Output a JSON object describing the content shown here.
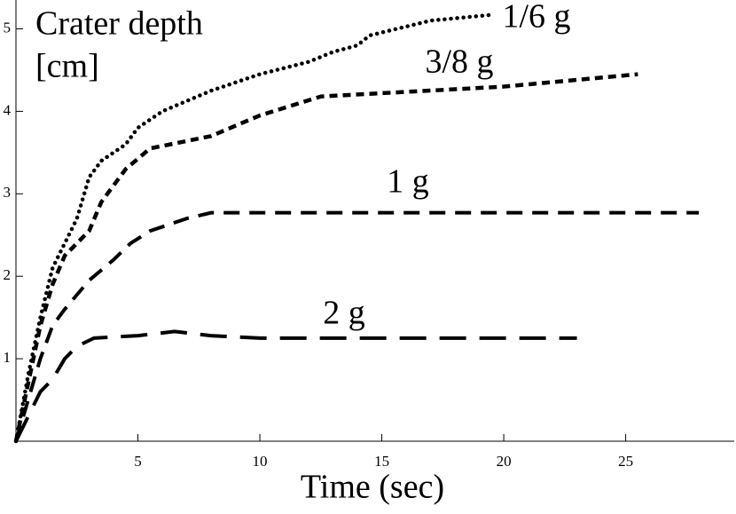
{
  "chart_data": {
    "type": "line",
    "ylabel": [
      "Crater depth",
      "[cm]"
    ],
    "xlabel": "Time (sec)",
    "xlim": [
      0,
      29.45
    ],
    "ylim": [
      0,
      5.35
    ],
    "xticks": [
      5,
      10,
      15,
      20,
      25
    ],
    "yticks": [
      1,
      2,
      3,
      4,
      5
    ],
    "series": [
      {
        "name": "1/6 g",
        "color": "#000000",
        "dash": "dotted",
        "x": [
          0,
          0.5,
          1,
          1.5,
          2,
          2.5,
          3,
          3.5,
          4.5,
          5,
          6,
          8,
          10,
          12,
          13,
          14,
          14.5,
          17,
          19.5
        ],
        "values": [
          0,
          0.8,
          1.5,
          2.1,
          2.4,
          2.7,
          3.2,
          3.4,
          3.6,
          3.8,
          4.0,
          4.25,
          4.45,
          4.6,
          4.72,
          4.8,
          4.92,
          5.1,
          5.17
        ]
      },
      {
        "name": "3/8 g",
        "color": "#000000",
        "dash": "short",
        "x": [
          0,
          0.5,
          1,
          1.5,
          2,
          3,
          3.5,
          4.5,
          5.5,
          8,
          10,
          12.5,
          15,
          20,
          25.5
        ],
        "values": [
          0,
          0.7,
          1.4,
          1.9,
          2.25,
          2.55,
          2.9,
          3.3,
          3.55,
          3.7,
          3.95,
          4.18,
          4.22,
          4.3,
          4.45
        ]
      },
      {
        "name": "1 g",
        "color": "#000000",
        "dash": "medium",
        "x": [
          0,
          0.5,
          1,
          1.5,
          2,
          3,
          4,
          4.7,
          5.5,
          7,
          8,
          28
        ],
        "values": [
          0,
          0.5,
          1.0,
          1.4,
          1.6,
          1.95,
          2.2,
          2.4,
          2.55,
          2.7,
          2.77,
          2.77
        ]
      },
      {
        "name": "2 g",
        "color": "#000000",
        "dash": "long",
        "x": [
          0,
          0.5,
          1,
          1.5,
          2,
          2.5,
          3.2,
          5,
          6.5,
          8,
          10,
          23
        ],
        "values": [
          0,
          0.3,
          0.6,
          0.75,
          1.0,
          1.15,
          1.25,
          1.28,
          1.33,
          1.28,
          1.25,
          1.25
        ]
      }
    ]
  }
}
